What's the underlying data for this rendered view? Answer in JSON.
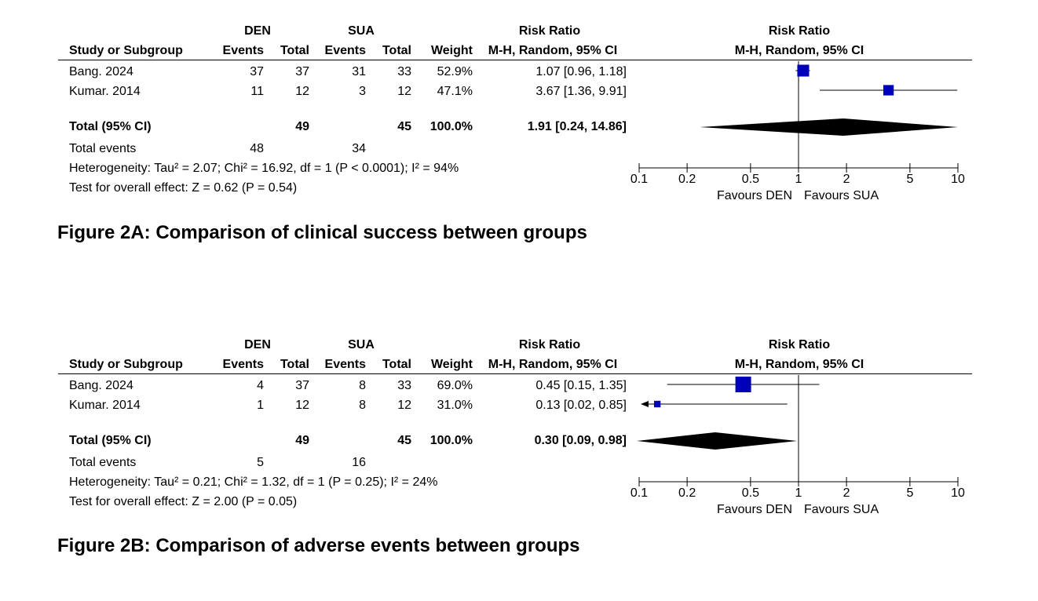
{
  "chart_data": [
    {
      "type": "forest",
      "caption": "Figure 2A: Comparison of clinical success between groups",
      "headers": {
        "group1": "DEN",
        "group2": "SUA",
        "study": "Study or Subgroup",
        "events": "Events",
        "total": "Total",
        "weight": "Weight",
        "effect_top": "Risk Ratio",
        "effect_sub": "M-H, Random, 95% CI",
        "plot_top": "Risk Ratio",
        "plot_sub": "M-H, Random, 95% CI"
      },
      "studies": [
        {
          "name": "Bang. 2024",
          "e1": "37",
          "t1": "37",
          "e2": "31",
          "t2": "33",
          "weight": "52.9%",
          "ci_text": "1.07 [0.96, 1.18]",
          "rr": 1.07,
          "lo": 0.96,
          "hi": 1.18,
          "w": 52.9
        },
        {
          "name": "Kumar. 2014",
          "e1": "11",
          "t1": "12",
          "e2": "3",
          "t2": "12",
          "weight": "47.1%",
          "ci_text": "3.67 [1.36, 9.91]",
          "rr": 3.67,
          "lo": 1.36,
          "hi": 9.91,
          "w": 47.1
        }
      ],
      "total": {
        "label": "Total (95% CI)",
        "t1": "49",
        "t2": "45",
        "weight": "100.0%",
        "ci_text": "1.91 [0.24, 14.86]",
        "rr": 1.91,
        "lo": 0.24,
        "hi": 14.86
      },
      "events": {
        "label": "Total events",
        "e1": "48",
        "e2": "34"
      },
      "heterogeneity": "Heterogeneity: Tau² = 2.07; Chi² = 16.92, df = 1 (P < 0.0001); I² = 94%",
      "overall": "Test for overall effect: Z = 0.62 (P = 0.54)",
      "axis": {
        "scale": "log",
        "range": [
          0.1,
          10
        ],
        "ticks": [
          "0.1",
          "0.2",
          "0.5",
          "1",
          "2",
          "5",
          "10"
        ],
        "favours_left": "Favours DEN",
        "favours_right": "Favours SUA"
      }
    },
    {
      "type": "forest",
      "caption": "Figure 2B: Comparison of adverse events between groups",
      "headers": {
        "group1": "DEN",
        "group2": "SUA",
        "study": "Study or Subgroup",
        "events": "Events",
        "total": "Total",
        "weight": "Weight",
        "effect_top": "Risk Ratio",
        "effect_sub": "M-H, Random, 95% CI",
        "plot_top": "Risk Ratio",
        "plot_sub": "M-H, Random, 95% CI"
      },
      "studies": [
        {
          "name": "Bang. 2024",
          "e1": "4",
          "t1": "37",
          "e2": "8",
          "t2": "33",
          "weight": "69.0%",
          "ci_text": "0.45 [0.15, 1.35]",
          "rr": 0.45,
          "lo": 0.15,
          "hi": 1.35,
          "w": 69.0
        },
        {
          "name": "Kumar. 2014",
          "e1": "1",
          "t1": "12",
          "e2": "8",
          "t2": "12",
          "weight": "31.0%",
          "ci_text": "0.13 [0.02, 0.85]",
          "rr": 0.13,
          "lo": 0.02,
          "hi": 0.85,
          "w": 31.0
        }
      ],
      "total": {
        "label": "Total (95% CI)",
        "t1": "49",
        "t2": "45",
        "weight": "100.0%",
        "ci_text": "0.30 [0.09, 0.98]",
        "rr": 0.3,
        "lo": 0.09,
        "hi": 0.98
      },
      "events": {
        "label": "Total events",
        "e1": "5",
        "e2": "16"
      },
      "heterogeneity": "Heterogeneity: Tau² = 0.21; Chi² = 1.32, df = 1 (P = 0.25); I² = 24%",
      "overall": "Test for overall effect: Z = 2.00 (P = 0.05)",
      "axis": {
        "scale": "log",
        "range": [
          0.1,
          10
        ],
        "ticks": [
          "0.1",
          "0.2",
          "0.5",
          "1",
          "2",
          "5",
          "10"
        ],
        "favours_left": "Favours DEN",
        "favours_right": "Favours SUA"
      }
    }
  ],
  "colors": {
    "marker": "#0000b8",
    "diamond": "#000000",
    "line": "#000000"
  }
}
